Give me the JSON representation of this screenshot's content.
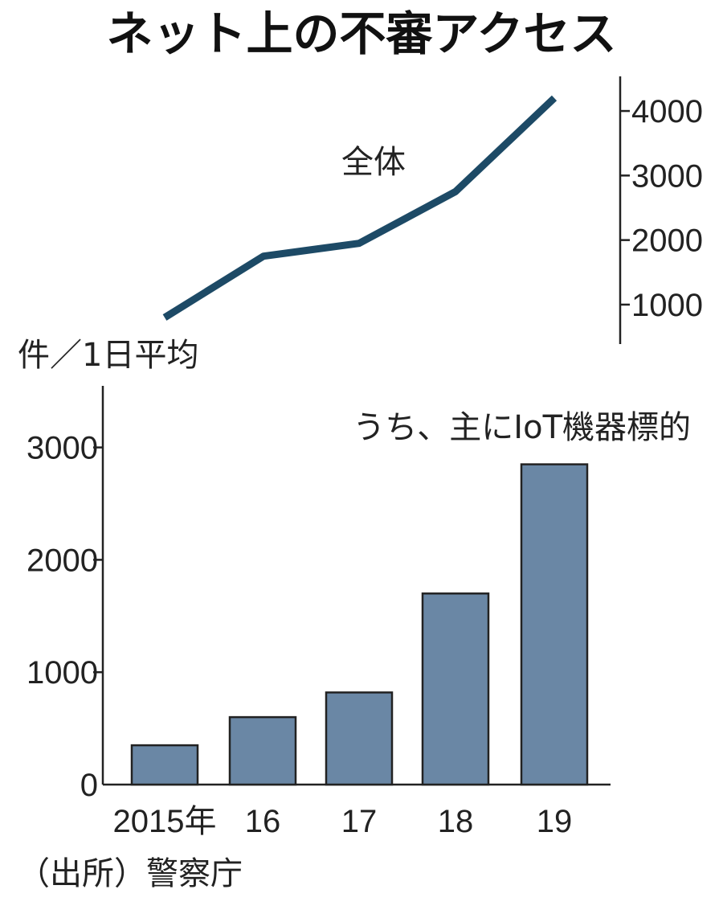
{
  "title": "ネット上の不審アクセス",
  "unit_label": "件／1日平均",
  "source": "（出所）警察庁",
  "colors": {
    "line": "#1d4a66",
    "bar": "#6a87a5",
    "bar_stroke": "#222222",
    "axis": "#222222"
  },
  "chart_data": [
    {
      "type": "line",
      "label": "全体",
      "x": [
        "2015年",
        "16",
        "17",
        "18",
        "19"
      ],
      "values": [
        800,
        1750,
        1950,
        2750,
        4200
      ],
      "y_ticks": [
        1000,
        2000,
        3000,
        4000
      ],
      "y_tick_labels": [
        "1000",
        "2000",
        "3000",
        "4000"
      ],
      "ylim": [
        500,
        4500
      ],
      "axis_side": "right",
      "grid": false
    },
    {
      "type": "bar",
      "label": "うち、主にIoT機器標的",
      "categories": [
        "2015年",
        "16",
        "17",
        "18",
        "19"
      ],
      "values": [
        350,
        600,
        820,
        1700,
        2850
      ],
      "y_ticks": [
        0,
        1000,
        2000,
        3000
      ],
      "y_tick_labels": [
        "0",
        "1000",
        "2000",
        "3000"
      ],
      "ylim": [
        0,
        3500
      ],
      "axis_side": "left",
      "grid": false
    }
  ]
}
